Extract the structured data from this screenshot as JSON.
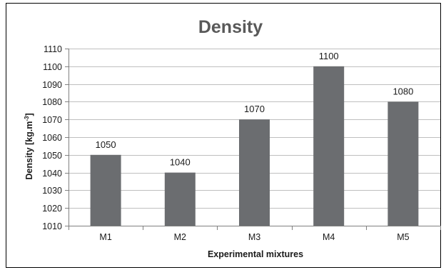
{
  "colors": {
    "bar": "#6b6d70",
    "gridline": "#bfbfbf",
    "axis": "#808080",
    "title": "#595959"
  },
  "chart_data": {
    "type": "bar",
    "title": "Density",
    "xlabel": "Experimental mixtures",
    "ylabel_main": "Density [kg.m",
    "ylabel_sup": "-3",
    "ylabel_tail": "]",
    "categories": [
      "M1",
      "M2",
      "M3",
      "M4",
      "M5"
    ],
    "values": [
      1050,
      1040,
      1070,
      1100,
      1080
    ],
    "data_labels": [
      "1050",
      "1040",
      "1070",
      "1100",
      "1080"
    ],
    "ylim": [
      1010,
      1110
    ],
    "yticks": [
      1010,
      1020,
      1030,
      1040,
      1050,
      1060,
      1070,
      1080,
      1090,
      1100,
      1110
    ],
    "grid": true,
    "legend": "none"
  }
}
